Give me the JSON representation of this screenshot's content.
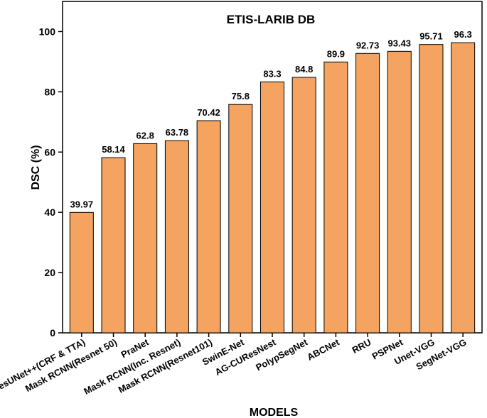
{
  "chart_data": {
    "type": "bar",
    "title": "ETIS-LARIB DB",
    "xlabel": "MODELS",
    "ylabel": "DSC (%)",
    "ylim": [
      0,
      110
    ],
    "yticks": [
      0,
      20,
      40,
      60,
      80,
      100
    ],
    "grid": false,
    "bar_color": "#f4a460",
    "bar_edge_color": "#000000",
    "categories": [
      "ResUNet++(CRF & TTA)",
      "Mask RCNN(Resnet 50)",
      "PraNet",
      "Mask RCNN(Inc. Resnet)",
      "Mask RCNN(Resnet101)",
      "SwinE-Net",
      "AG-CUResNest",
      "PolypSegNet",
      "ABCNet",
      "RRU",
      "PSPNet",
      "Unet-VGG",
      "SegNet-VGG"
    ],
    "values": [
      39.97,
      58.14,
      62.8,
      63.78,
      70.42,
      75.8,
      83.3,
      84.8,
      89.9,
      92.73,
      93.43,
      95.71,
      96.3
    ],
    "data_labels": [
      "39.97",
      "58.14",
      "62.8",
      "63.78",
      "70.42",
      "75.8",
      "83.3",
      "84.8",
      "89.9",
      "92.73",
      "93.43",
      "95.71",
      "96.3"
    ]
  }
}
